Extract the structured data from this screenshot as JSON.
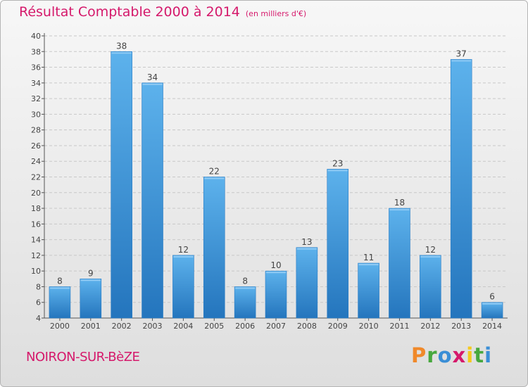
{
  "title": "Résultat Comptable 2000 à 2014",
  "unit": "(en milliers d'€)",
  "location": "NOIRON-SUR-BèZE",
  "logo": {
    "letters": [
      "P",
      "r",
      "o",
      "x",
      "i",
      "t",
      "i"
    ],
    "colors": [
      "#f0892a",
      "#47a83e",
      "#3a8ed6",
      "#d5196b",
      "#f5c91d",
      "#47a83e",
      "#3a8ed6"
    ]
  },
  "chart_data": {
    "type": "bar",
    "categories": [
      "2000",
      "2001",
      "2002",
      "2003",
      "2004",
      "2005",
      "2006",
      "2007",
      "2008",
      "2009",
      "2010",
      "2011",
      "2012",
      "2013",
      "2014"
    ],
    "values": [
      8,
      9,
      38,
      34,
      12,
      22,
      8,
      10,
      13,
      23,
      11,
      18,
      12,
      37,
      6
    ],
    "ylim": [
      4,
      40
    ],
    "yticks": [
      4,
      6,
      8,
      10,
      12,
      14,
      16,
      18,
      20,
      22,
      24,
      26,
      28,
      30,
      32,
      34,
      36,
      38,
      40
    ],
    "grid": true,
    "bar_color": "#3d95dc"
  }
}
